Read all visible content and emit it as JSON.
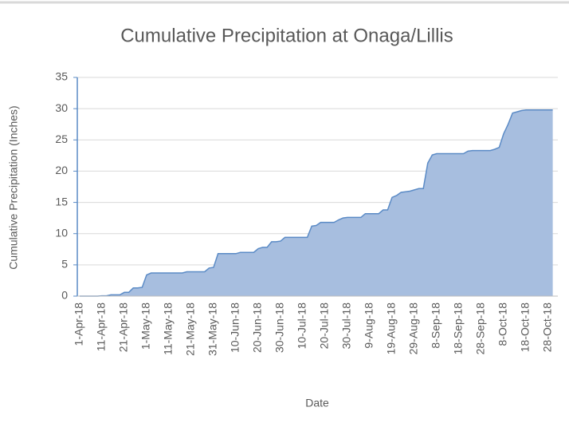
{
  "chart_data": {
    "type": "area",
    "title": "Cumulative Precipitation at Onaga/Lillis",
    "y_label": "Cumulative Precipitation (Inches)",
    "x_label": "Date",
    "color": "#a7bedf",
    "line_color": "#5b8bc6",
    "grid": true,
    "ylim": [
      0,
      35
    ],
    "yticks": [
      0,
      5,
      10,
      15,
      20,
      25,
      30,
      35
    ],
    "categories": [
      "1-Apr-18",
      null,
      null,
      null,
      null,
      "11-Apr-18",
      null,
      null,
      null,
      null,
      "21-Apr-18",
      null,
      null,
      null,
      null,
      "1-May-18",
      null,
      null,
      null,
      null,
      "11-May-18",
      null,
      null,
      null,
      null,
      "21-May-18",
      null,
      null,
      null,
      null,
      "31-May-18",
      null,
      null,
      null,
      null,
      "10-Jun-18",
      null,
      null,
      null,
      null,
      "20-Jun-18",
      null,
      null,
      null,
      null,
      "30-Jun-18",
      null,
      null,
      null,
      null,
      "10-Jul-18",
      null,
      null,
      null,
      null,
      "20-Jul-18",
      null,
      null,
      null,
      null,
      "30-Jul-18",
      null,
      null,
      null,
      null,
      "9-Aug-18",
      null,
      null,
      null,
      null,
      "19-Aug-18",
      null,
      null,
      null,
      null,
      "29-Aug-18",
      null,
      null,
      null,
      null,
      "8-Sep-18",
      null,
      null,
      null,
      null,
      "18-Sep-18",
      null,
      null,
      null,
      null,
      "28-Sep-18",
      null,
      null,
      null,
      null,
      "8-Oct-18",
      null,
      null,
      null,
      null,
      "18-Oct-18",
      null,
      null,
      null,
      null,
      "28-Oct-18",
      null
    ],
    "values": [
      0,
      0,
      0,
      0,
      0,
      0.05,
      0.05,
      0.2,
      0.2,
      0.2,
      0.6,
      0.6,
      1.3,
      1.3,
      1.4,
      3.4,
      3.7,
      3.7,
      3.7,
      3.7,
      3.7,
      3.7,
      3.7,
      3.7,
      3.9,
      3.9,
      3.9,
      3.9,
      3.9,
      4.5,
      4.6,
      6.8,
      6.8,
      6.8,
      6.8,
      6.8,
      7.0,
      7.0,
      7.0,
      7.0,
      7.6,
      7.8,
      7.8,
      8.7,
      8.7,
      8.8,
      9.4,
      9.4,
      9.4,
      9.4,
      9.4,
      9.4,
      11.2,
      11.3,
      11.8,
      11.8,
      11.8,
      11.8,
      12.2,
      12.5,
      12.6,
      12.6,
      12.6,
      12.6,
      13.2,
      13.2,
      13.2,
      13.2,
      13.8,
      13.8,
      15.8,
      16.1,
      16.6,
      16.7,
      16.8,
      17.0,
      17.2,
      17.2,
      21.3,
      22.6,
      22.8,
      22.8,
      22.8,
      22.8,
      22.8,
      22.8,
      22.8,
      23.2,
      23.3,
      23.3,
      23.3,
      23.3,
      23.3,
      23.5,
      23.8,
      26.0,
      27.5,
      29.3,
      29.5,
      29.7,
      29.8,
      29.8,
      29.8,
      29.8,
      29.8,
      29.8,
      29.8
    ]
  }
}
